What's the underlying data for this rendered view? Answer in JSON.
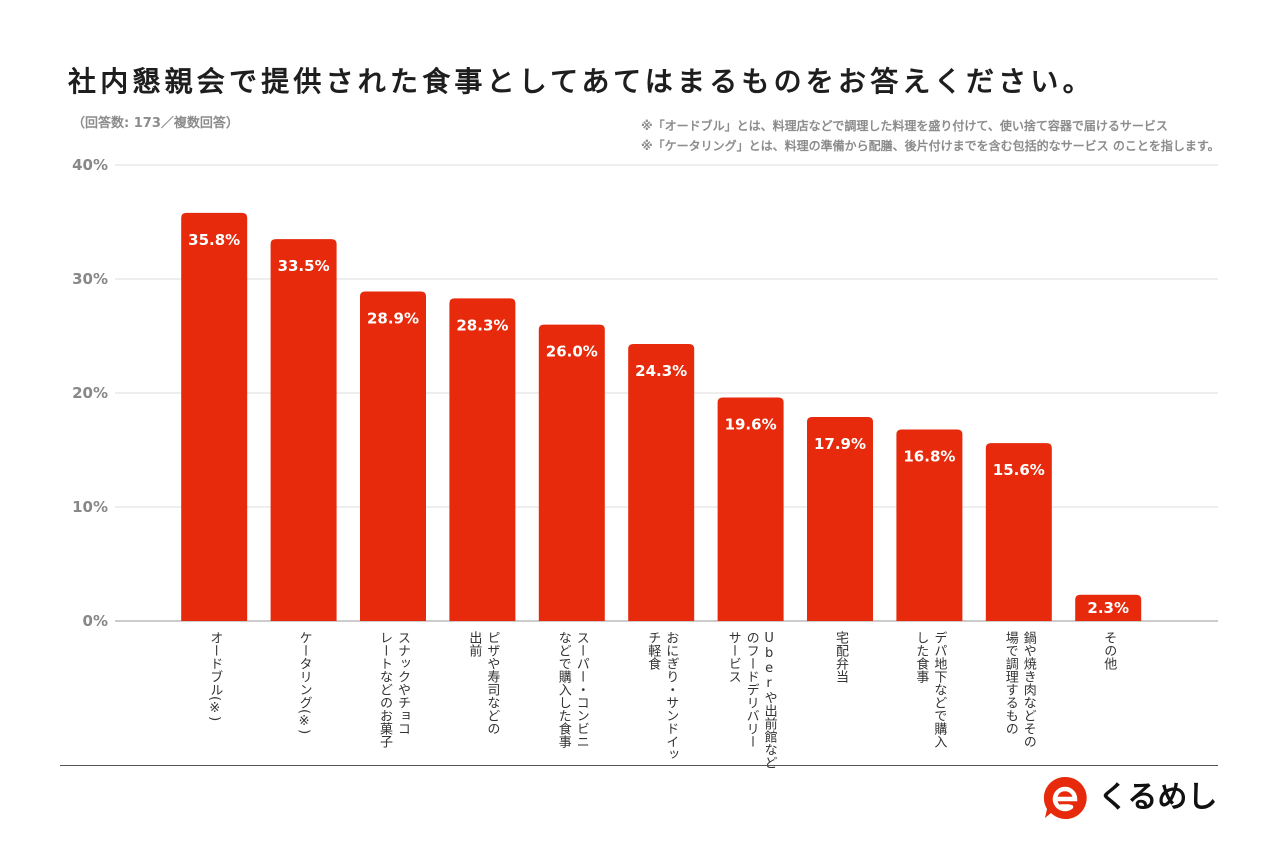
{
  "chart_data": {
    "type": "bar",
    "title": "社内懇親会で提供された食事としてあてはまるものをお答えください。",
    "subtitle": "（回答数: 173／複数回答）",
    "notes": [
      "※「オードブル」とは、料理店などで調理した料理を盛り付けて、使い捨て容器で届けるサービス",
      "※「ケータリング」とは、料理の準備から配膳、後片付けまでを含む包括的なサービス のことを指します。"
    ],
    "categories": [
      "オードブル(※)",
      "ケータリング(※)",
      "スナックやチョコ\nレートなどのお菓子",
      "ピザや寿司などの\n出前",
      "スーパー・コンビニ\nなどで購入した食事",
      "おにぎり・サンドイッ\nチ軽食",
      "Uberや出前館など\nのフードデリバリー\nサービス",
      "宅配弁当",
      "デパ地下などで購入\nした食事",
      "鍋や焼き肉などその\n場で調理するもの",
      "その他"
    ],
    "values": [
      35.8,
      33.5,
      28.9,
      28.3,
      26.0,
      24.3,
      19.6,
      17.9,
      16.8,
      15.6,
      2.3
    ],
    "data_labels": [
      "35.8%",
      "33.5%",
      "28.9%",
      "28.3%",
      "26.0%",
      "24.3%",
      "19.6%",
      "17.9%",
      "16.8%",
      "15.6%",
      "2.3%"
    ],
    "xlabel": "",
    "ylabel": "",
    "ylim": [
      0,
      40
    ],
    "yticks": [
      0,
      10,
      20,
      30,
      40
    ],
    "ytick_labels": [
      "0%",
      "10%",
      "20%",
      "30%",
      "40%"
    ],
    "grid": true,
    "legend": "none",
    "bar_color": "#E62A0B"
  },
  "brand": {
    "name": "くるめし",
    "icon": "kurumeshi-logo-icon",
    "color": "#E62A0B"
  }
}
